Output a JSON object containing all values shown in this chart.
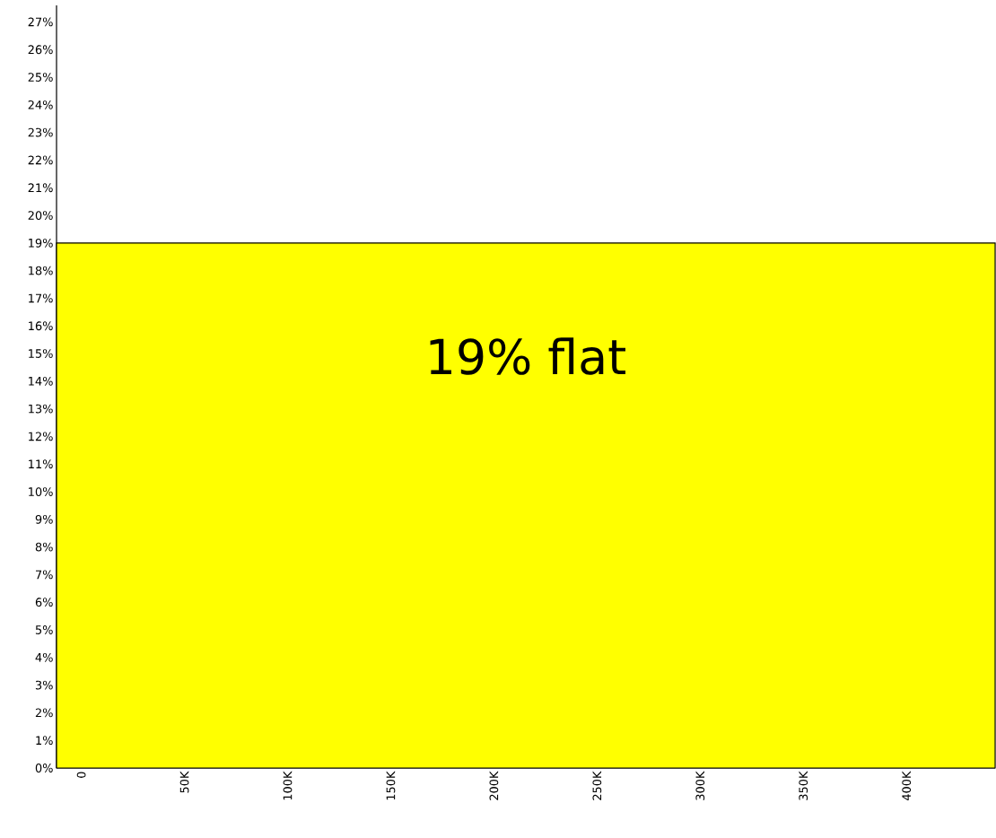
{
  "chart_data": {
    "type": "area",
    "x": [
      -12000,
      443000
    ],
    "values": [
      19,
      19
    ],
    "color": "#ffff00",
    "xlim": [
      -12000,
      443000
    ],
    "ylim": [
      0,
      27.6
    ],
    "xticks": [
      {
        "value": 0,
        "label": "0"
      },
      {
        "value": 50000,
        "label": "50K"
      },
      {
        "value": 100000,
        "label": "100K"
      },
      {
        "value": 150000,
        "label": "150K"
      },
      {
        "value": 200000,
        "label": "200K"
      },
      {
        "value": 250000,
        "label": "250K"
      },
      {
        "value": 300000,
        "label": "300K"
      },
      {
        "value": 350000,
        "label": "350K"
      },
      {
        "value": 400000,
        "label": "400K"
      }
    ],
    "yticks": [
      {
        "value": 0,
        "label": "0%"
      },
      {
        "value": 1,
        "label": "1%"
      },
      {
        "value": 2,
        "label": "2%"
      },
      {
        "value": 3,
        "label": "3%"
      },
      {
        "value": 4,
        "label": "4%"
      },
      {
        "value": 5,
        "label": "5%"
      },
      {
        "value": 6,
        "label": "6%"
      },
      {
        "value": 7,
        "label": "7%"
      },
      {
        "value": 8,
        "label": "8%"
      },
      {
        "value": 9,
        "label": "9%"
      },
      {
        "value": 10,
        "label": "10%"
      },
      {
        "value": 11,
        "label": "11%"
      },
      {
        "value": 12,
        "label": "12%"
      },
      {
        "value": 13,
        "label": "13%"
      },
      {
        "value": 14,
        "label": "14%"
      },
      {
        "value": 15,
        "label": "15%"
      },
      {
        "value": 16,
        "label": "16%"
      },
      {
        "value": 17,
        "label": "17%"
      },
      {
        "value": 18,
        "label": "18%"
      },
      {
        "value": 19,
        "label": "19%"
      },
      {
        "value": 20,
        "label": "20%"
      },
      {
        "value": 21,
        "label": "21%"
      },
      {
        "value": 22,
        "label": "22%"
      },
      {
        "value": 23,
        "label": "23%"
      },
      {
        "value": 24,
        "label": "24%"
      },
      {
        "value": 25,
        "label": "25%"
      },
      {
        "value": 26,
        "label": "26%"
      },
      {
        "value": 27,
        "label": "27%"
      }
    ],
    "annotations": [
      "19% flat"
    ]
  }
}
